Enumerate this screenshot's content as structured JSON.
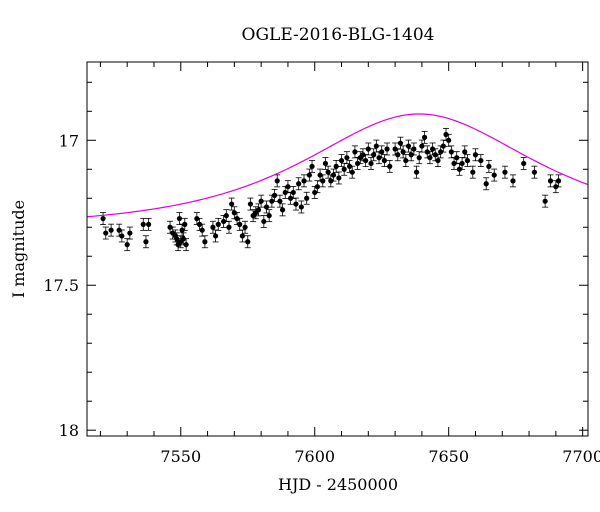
{
  "chart_data": {
    "type": "scatter",
    "title": "OGLE-2016-BLG-1404",
    "xlabel": "HJD - 2450000",
    "ylabel": "I magnitude",
    "xlim": [
      7515,
      7702
    ],
    "ylim": [
      18.02,
      16.73
    ],
    "y_inverted": true,
    "grid": false,
    "xticks": [
      {
        "value": 7550,
        "label": "7550"
      },
      {
        "value": 7600,
        "label": "7600"
      },
      {
        "value": 7650,
        "label": "7650"
      },
      {
        "value": 7700,
        "label": "7700"
      }
    ],
    "yticks": [
      {
        "value": 17,
        "label": "17"
      },
      {
        "value": 17.5,
        "label": "17.5"
      },
      {
        "value": 18,
        "label": "18"
      }
    ],
    "x_minor_step": 10,
    "y_minor_step": 0.1,
    "colors": {
      "fit_curve": "#e000e0",
      "points": "#000000"
    },
    "fit_model": {
      "t0": 7639,
      "u0": 0.89,
      "tE": 55,
      "base_mag": 17.3
    },
    "series": [
      {
        "type": "scatter",
        "points": [
          [
            7521,
            17.27
          ],
          [
            7522,
            17.32
          ],
          [
            7524,
            17.31
          ],
          [
            7527,
            17.31
          ],
          [
            7528,
            17.33
          ],
          [
            7530,
            17.36
          ],
          [
            7531,
            17.32
          ],
          [
            7536,
            17.29
          ],
          [
            7537,
            17.35
          ],
          [
            7538,
            17.29
          ],
          [
            7546,
            17.3
          ],
          [
            7547,
            17.32
          ],
          [
            7548,
            17.33
          ],
          [
            7548.5,
            17.34
          ],
          [
            7549,
            17.36
          ],
          [
            7549.5,
            17.27
          ],
          [
            7550,
            17.35
          ],
          [
            7550.5,
            17.31
          ],
          [
            7551,
            17.34
          ],
          [
            7551.5,
            17.29
          ],
          [
            7552,
            17.36
          ],
          [
            7556,
            17.27
          ],
          [
            7557,
            17.29
          ],
          [
            7558,
            17.31
          ],
          [
            7559,
            17.35
          ],
          [
            7562,
            17.3
          ],
          [
            7563,
            17.33
          ],
          [
            7564,
            17.29
          ],
          [
            7566,
            17.28
          ],
          [
            7567,
            17.26
          ],
          [
            7568,
            17.3
          ],
          [
            7569,
            17.22
          ],
          [
            7570,
            17.25
          ],
          [
            7571,
            17.27
          ],
          [
            7572,
            17.29
          ],
          [
            7573,
            17.33
          ],
          [
            7574,
            17.3
          ],
          [
            7575,
            17.35
          ],
          [
            7576,
            17.22
          ],
          [
            7577,
            17.26
          ],
          [
            7578,
            17.25
          ],
          [
            7579,
            17.24
          ],
          [
            7580,
            17.21
          ],
          [
            7581,
            17.28
          ],
          [
            7582,
            17.23
          ],
          [
            7583,
            17.26
          ],
          [
            7584,
            17.21
          ],
          [
            7585,
            17.19
          ],
          [
            7586,
            17.14
          ],
          [
            7587,
            17.21
          ],
          [
            7588,
            17.24
          ],
          [
            7589,
            17.18
          ],
          [
            7590,
            17.16
          ],
          [
            7591,
            17.2
          ],
          [
            7592,
            17.18
          ],
          [
            7593,
            17.22
          ],
          [
            7594,
            17.15
          ],
          [
            7595,
            17.23
          ],
          [
            7596,
            17.14
          ],
          [
            7597,
            17.2
          ],
          [
            7598,
            17.12
          ],
          [
            7599,
            17.09
          ],
          [
            7600,
            17.18
          ],
          [
            7601,
            17.16
          ],
          [
            7602,
            17.12
          ],
          [
            7603,
            17.14
          ],
          [
            7604,
            17.08
          ],
          [
            7605,
            17.11
          ],
          [
            7606,
            17.14
          ],
          [
            7607,
            17.12
          ],
          [
            7608,
            17.09
          ],
          [
            7609,
            17.13
          ],
          [
            7610,
            17.07
          ],
          [
            7611,
            17.1
          ],
          [
            7612,
            17.06
          ],
          [
            7613,
            17.09
          ],
          [
            7614,
            17.11
          ],
          [
            7615,
            17.04
          ],
          [
            7616,
            17.08
          ],
          [
            7617,
            17.06
          ],
          [
            7618,
            17.05
          ],
          [
            7619,
            17.07
          ],
          [
            7620,
            17.03
          ],
          [
            7621,
            17.08
          ],
          [
            7622,
            17.05
          ],
          [
            7623,
            17.02
          ],
          [
            7624,
            17.06
          ],
          [
            7625,
            17.04
          ],
          [
            7626,
            17.07
          ],
          [
            7627,
            17.03
          ],
          [
            7628,
            17.09
          ],
          [
            7630,
            17.03
          ],
          [
            7631,
            17.05
          ],
          [
            7632,
            17.01
          ],
          [
            7633,
            17.04
          ],
          [
            7634,
            17.07
          ],
          [
            7635,
            17.02
          ],
          [
            7636,
            17.05
          ],
          [
            7637,
            17.03
          ],
          [
            7638,
            17.11
          ],
          [
            7639,
            17.06
          ],
          [
            7640,
            17.02
          ],
          [
            7641,
            16.99
          ],
          [
            7642,
            17.04
          ],
          [
            7643,
            17.06
          ],
          [
            7644,
            17.03
          ],
          [
            7645,
            17.05
          ],
          [
            7646,
            17.07
          ],
          [
            7647,
            17.04
          ],
          [
            7648,
            17.02
          ],
          [
            7649,
            16.98
          ],
          [
            7650,
            17.0
          ],
          [
            7651,
            17.04
          ],
          [
            7652,
            17.08
          ],
          [
            7653,
            17.06
          ],
          [
            7654,
            17.1
          ],
          [
            7655,
            17.08
          ],
          [
            7656,
            17.04
          ],
          [
            7657,
            17.07
          ],
          [
            7659,
            17.11
          ],
          [
            7660,
            17.05
          ],
          [
            7662,
            17.07
          ],
          [
            7664,
            17.15
          ],
          [
            7665,
            17.09
          ],
          [
            7667,
            17.12
          ],
          [
            7671,
            17.11
          ],
          [
            7674,
            17.14
          ],
          [
            7678,
            17.08
          ],
          [
            7682,
            17.11
          ],
          [
            7686,
            17.21
          ],
          [
            7688,
            17.14
          ],
          [
            7690,
            17.16
          ],
          [
            7691,
            17.14
          ]
        ]
      }
    ]
  }
}
